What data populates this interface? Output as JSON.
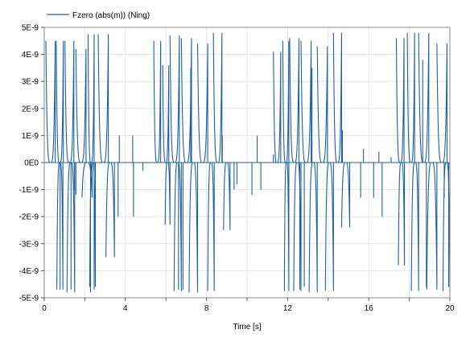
{
  "chart_data": {
    "type": "line",
    "title": "",
    "xlabel": "Time [s]",
    "ylabel": "",
    "xlim": [
      0,
      20
    ],
    "ylim": [
      -5e-09,
      5e-09
    ],
    "x_ticks": [
      0,
      4,
      8,
      12,
      16,
      20
    ],
    "x_tick_labels": [
      "0",
      "4",
      "8",
      "12",
      "16",
      "20"
    ],
    "y_ticks": [
      5e-09,
      4e-09,
      3e-09,
      2e-09,
      1e-09,
      0,
      -1e-09,
      -2e-09,
      -3e-09,
      -4e-09,
      -5e-09
    ],
    "y_tick_labels": [
      "5E-9",
      "4E-9",
      "3E-9",
      "2E-9",
      "1E-9",
      "0E0",
      "-1E-9",
      "-2E-9",
      "-3E-9",
      "-4E-9",
      "-5E-9"
    ],
    "grid": true,
    "legend_position": "top-left",
    "series": [
      {
        "name": "Fzero (abs(m)) (Ning)",
        "color": "#1f5fa6",
        "lobes": [
          {
            "x0": 0.08,
            "x1": 0.54,
            "peak": 4.5e-09
          },
          {
            "x0": 0.59,
            "x1": 0.94,
            "peak": 4.5e-09
          },
          {
            "x0": 0.62,
            "x1": 0.92,
            "peak": -4.7e-09
          },
          {
            "x0": 1.02,
            "x1": 1.46,
            "peak": 4.5e-09
          },
          {
            "x0": 1.12,
            "x1": 1.5,
            "peak": -4.8e-09
          },
          {
            "x0": 1.56,
            "x1": 2.06,
            "peak": 4.2e-09
          },
          {
            "x0": 1.86,
            "x1": 2.36,
            "peak": -1.3e-09
          },
          {
            "x0": 2.16,
            "x1": 2.46,
            "peak": 4.75e-09
          },
          {
            "x0": 2.24,
            "x1": 2.52,
            "peak": -4.6e-09
          },
          {
            "x0": 2.66,
            "x1": 3.16,
            "peak": 4.75e-09
          },
          {
            "x0": 3.04,
            "x1": 3.46,
            "peak": -3.5e-09
          },
          {
            "x0": 5.4,
            "x1": 5.74,
            "peak": 4.5e-09
          },
          {
            "x0": 5.84,
            "x1": 6.14,
            "peak": 3.6e-09
          },
          {
            "x0": 5.96,
            "x1": 6.2,
            "peak": -2.3e-09
          },
          {
            "x0": 6.2,
            "x1": 6.66,
            "peak": 4.7e-09
          },
          {
            "x0": 6.4,
            "x1": 6.76,
            "peak": -4.75e-09
          },
          {
            "x0": 6.76,
            "x1": 7.26,
            "peak": 4.6e-09
          },
          {
            "x0": 7.14,
            "x1": 7.56,
            "peak": -4.8e-09
          },
          {
            "x0": 7.56,
            "x1": 8.06,
            "peak": 4.4e-09
          },
          {
            "x0": 8.06,
            "x1": 8.38,
            "peak": -4.75e-09
          },
          {
            "x0": 8.34,
            "x1": 8.76,
            "peak": 4.8e-09
          },
          {
            "x0": 8.84,
            "x1": 9.16,
            "peak": -2.5e-09
          },
          {
            "x0": 11.3,
            "x1": 11.66,
            "peak": 4.1e-09
          },
          {
            "x0": 11.76,
            "x1": 12.06,
            "peak": 4.5e-09
          },
          {
            "x0": 11.84,
            "x1": 12.06,
            "peak": -4.75e-09
          },
          {
            "x0": 12.1,
            "x1": 12.56,
            "peak": 4.6e-09
          },
          {
            "x0": 12.3,
            "x1": 12.66,
            "peak": -4.75e-09
          },
          {
            "x0": 12.66,
            "x1": 13.16,
            "peak": 4.5e-09
          },
          {
            "x0": 13.06,
            "x1": 13.46,
            "peak": -4.8e-09
          },
          {
            "x0": 13.46,
            "x1": 13.96,
            "peak": 4.3e-09
          },
          {
            "x0": 13.86,
            "x1": 14.26,
            "peak": -4.75e-09
          },
          {
            "x0": 14.26,
            "x1": 14.66,
            "peak": 4.8e-09
          },
          {
            "x0": 14.66,
            "x1": 15.06,
            "peak": -2.4e-09
          },
          {
            "x0": 17.36,
            "x1": 17.74,
            "peak": 4.6e-09
          },
          {
            "x0": 17.46,
            "x1": 17.76,
            "peak": -3.8e-09
          },
          {
            "x0": 17.9,
            "x1": 18.26,
            "peak": 4.8e-09
          },
          {
            "x0": 18.1,
            "x1": 18.46,
            "peak": -4.75e-09
          },
          {
            "x0": 18.46,
            "x1": 18.96,
            "peak": 4.8e-09
          },
          {
            "x0": 18.86,
            "x1": 19.36,
            "peak": -4.7e-09
          },
          {
            "x0": 19.36,
            "x1": 19.86,
            "peak": 4.4e-09
          },
          {
            "x0": 19.66,
            "x1": 20.0,
            "peak": -4.75e-09
          }
        ],
        "spikes": [
          {
            "x": 0.78,
            "y": -4.7e-09
          },
          {
            "x": 1.32,
            "y": -4.7e-09
          },
          {
            "x": 1.48,
            "y": -1e-09
          },
          {
            "x": 1.56,
            "y": -1.2e-09
          },
          {
            "x": 2.28,
            "y": -4.8e-09
          },
          {
            "x": 2.46,
            "y": -4.7e-09
          },
          {
            "x": 3.64,
            "y": -2e-09
          },
          {
            "x": 3.7,
            "y": 1e-09
          },
          {
            "x": 4.36,
            "y": 1e-09
          },
          {
            "x": 4.4,
            "y": -2e-09
          },
          {
            "x": 4.86,
            "y": -3e-10
          },
          {
            "x": 6.62,
            "y": -4.7e-09
          },
          {
            "x": 6.84,
            "y": -4.7e-09
          },
          {
            "x": 7.22,
            "y": 3.5e-09
          },
          {
            "x": 8.78,
            "y": 1e-09
          },
          {
            "x": 9.36,
            "y": -1e-09
          },
          {
            "x": 9.5,
            "y": -8e-10
          },
          {
            "x": 10.24,
            "y": -1.2e-09
          },
          {
            "x": 10.5,
            "y": 1e-09
          },
          {
            "x": 10.68,
            "y": -1e-09
          },
          {
            "x": 11.3,
            "y": 3e-10
          },
          {
            "x": 12.6,
            "y": -4.7e-09
          },
          {
            "x": 12.82,
            "y": -4.6e-09
          },
          {
            "x": 13.2,
            "y": 3.5e-09
          },
          {
            "x": 14.7,
            "y": 1.2e-09
          },
          {
            "x": 15.6,
            "y": -1.3e-09
          },
          {
            "x": 15.74,
            "y": 5e-10
          },
          {
            "x": 16.24,
            "y": -1.3e-09
          },
          {
            "x": 16.5,
            "y": 4e-10
          },
          {
            "x": 16.66,
            "y": -2e-09
          },
          {
            "x": 17.1,
            "y": 2e-10
          },
          {
            "x": 18.66,
            "y": 3.8e-09
          },
          {
            "x": 18.84,
            "y": -4.6e-09
          },
          {
            "x": 19.72,
            "y": -1.3e-09
          },
          {
            "x": 19.94,
            "y": -4.6e-09
          }
        ]
      }
    ]
  }
}
